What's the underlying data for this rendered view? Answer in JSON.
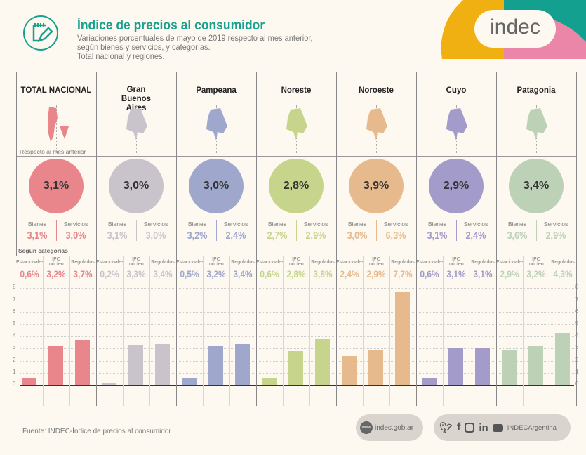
{
  "header": {
    "title": "Índice de precios al consumidor",
    "subtitle_lines": [
      "Variaciones porcentuales de mayo de 2019 respecto al mes anterior,",
      "según bienes y servicios, y categorías.",
      "Total nacional y regiones."
    ],
    "logo_text": "indec",
    "icon": "notepad-pencil-icon"
  },
  "labels": {
    "respecto": "Respecto al mes anterior",
    "bienes": "Bienes",
    "servicios": "Servicios",
    "segun": "Según categorías",
    "cats": [
      "Estacionales",
      "IPC núcleo",
      "Regulados"
    ]
  },
  "footer": {
    "source": "Fuente: INDEC-Índice de precios al consumidor",
    "web": "indec.gob.ar",
    "social": "INDECArgentina",
    "web_icon": "www",
    "social_icons": [
      "twitter-icon",
      "facebook-icon",
      "instagram-icon",
      "linkedin-icon",
      "youtube-icon"
    ]
  },
  "chart_data": {
    "type": "bar",
    "ylim": [
      0,
      8
    ],
    "yticks": [
      "0",
      "1",
      "2",
      "3",
      "4",
      "5",
      "6",
      "7",
      "8"
    ],
    "categories": [
      "Estacionales",
      "IPC núcleo",
      "Regulados"
    ],
    "regions": [
      {
        "name": "TOTAL NACIONAL",
        "color": "#e8868c",
        "total": "3,1%",
        "bienes": "3,1%",
        "servicios": "3,0%",
        "cat_labels": [
          "0,6%",
          "3,2%",
          "3,7%"
        ],
        "values": [
          0.6,
          3.2,
          3.7
        ]
      },
      {
        "name": "Gran Buenos Aires",
        "color": "#c9c4cc",
        "total": "3,0%",
        "bienes": "3,1%",
        "servicios": "3,0%",
        "cat_labels": [
          "0,2%",
          "3,3%",
          "3,4%"
        ],
        "values": [
          0.2,
          3.3,
          3.4
        ]
      },
      {
        "name": "Pampeana",
        "color": "#9fa7cd",
        "total": "3,0%",
        "bienes": "3,2%",
        "servicios": "2,4%",
        "cat_labels": [
          "0,5%",
          "3,2%",
          "3,4%"
        ],
        "values": [
          0.5,
          3.2,
          3.4
        ]
      },
      {
        "name": "Noreste",
        "color": "#c7d58c",
        "total": "2,8%",
        "bienes": "2,7%",
        "servicios": "2,9%",
        "cat_labels": [
          "0,6%",
          "2,8%",
          "3,8%"
        ],
        "values": [
          0.6,
          2.8,
          3.8
        ]
      },
      {
        "name": "Noroeste",
        "color": "#e6ba8d",
        "total": "3,9%",
        "bienes": "3,0%",
        "servicios": "6,3%",
        "cat_labels": [
          "2,4%",
          "2,9%",
          "7,7%"
        ],
        "values": [
          2.4,
          2.9,
          7.7
        ]
      },
      {
        "name": "Cuyo",
        "color": "#a39cca",
        "total": "2,9%",
        "bienes": "3,1%",
        "servicios": "2,4%",
        "cat_labels": [
          "0,6%",
          "3,1%",
          "3,1%"
        ],
        "values": [
          0.6,
          3.1,
          3.1
        ]
      },
      {
        "name": "Patagonia",
        "color": "#bdd1b7",
        "total": "3,4%",
        "bienes": "3,6%",
        "servicios": "2,9%",
        "cat_labels": [
          "2,9%",
          "3,2%",
          "4,3%"
        ],
        "values": [
          2.9,
          3.2,
          4.3
        ]
      }
    ]
  }
}
